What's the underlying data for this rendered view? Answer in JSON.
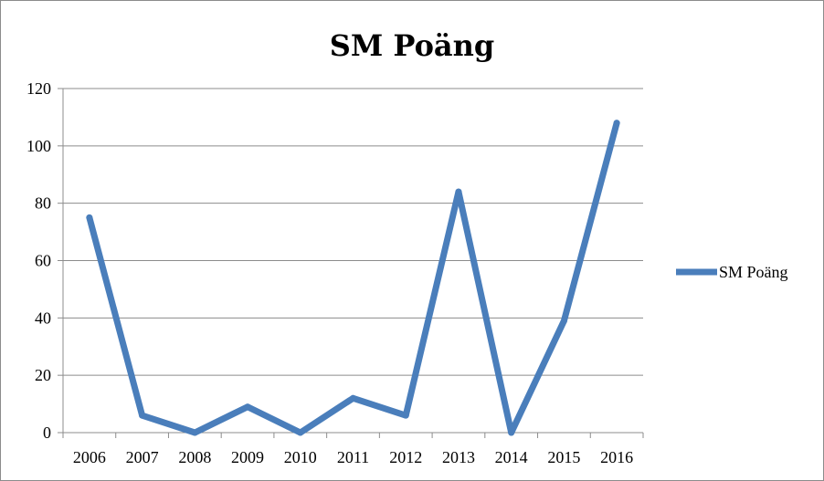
{
  "chart_data": {
    "type": "line",
    "title": "SM Poäng",
    "xlabel": "",
    "ylabel": "",
    "categories": [
      "2006",
      "2007",
      "2008",
      "2009",
      "2010",
      "2011",
      "2012",
      "2013",
      "2014",
      "2015",
      "2016"
    ],
    "series": [
      {
        "name": "SM Poäng",
        "values": [
          75,
          6,
          0,
          9,
          0,
          12,
          6,
          84,
          0,
          39,
          108
        ],
        "color": "#4a7ebb"
      }
    ],
    "ylim": [
      0,
      120
    ],
    "yticks": [
      "0",
      "20",
      "40",
      "60",
      "80",
      "100",
      "120"
    ],
    "grid": true,
    "legend_position": "right"
  }
}
